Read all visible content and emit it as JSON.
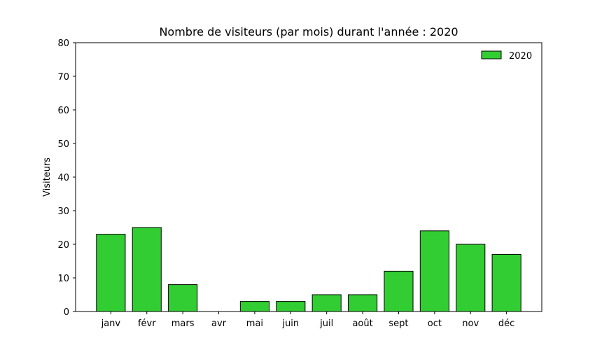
{
  "chart_data": {
    "type": "bar",
    "title": "Nombre de visiteurs (par mois) durant l'année : 2020",
    "xlabel": "",
    "ylabel": "Visiteurs",
    "categories": [
      "janv",
      "févr",
      "mars",
      "avr",
      "mai",
      "juin",
      "juil",
      "août",
      "sept",
      "oct",
      "nov",
      "déc"
    ],
    "series": [
      {
        "name": "2020",
        "values": [
          23,
          25,
          8,
          0,
          3,
          3,
          5,
          5,
          12,
          24,
          20,
          17
        ]
      }
    ],
    "ylim": [
      0,
      80
    ],
    "yticks": [
      0,
      10,
      20,
      30,
      40,
      50,
      60,
      70,
      80
    ],
    "legend_position": "top-right",
    "grid": false,
    "colors": {
      "bar_fill": "#32cd32",
      "bar_edge": "#000000"
    }
  }
}
